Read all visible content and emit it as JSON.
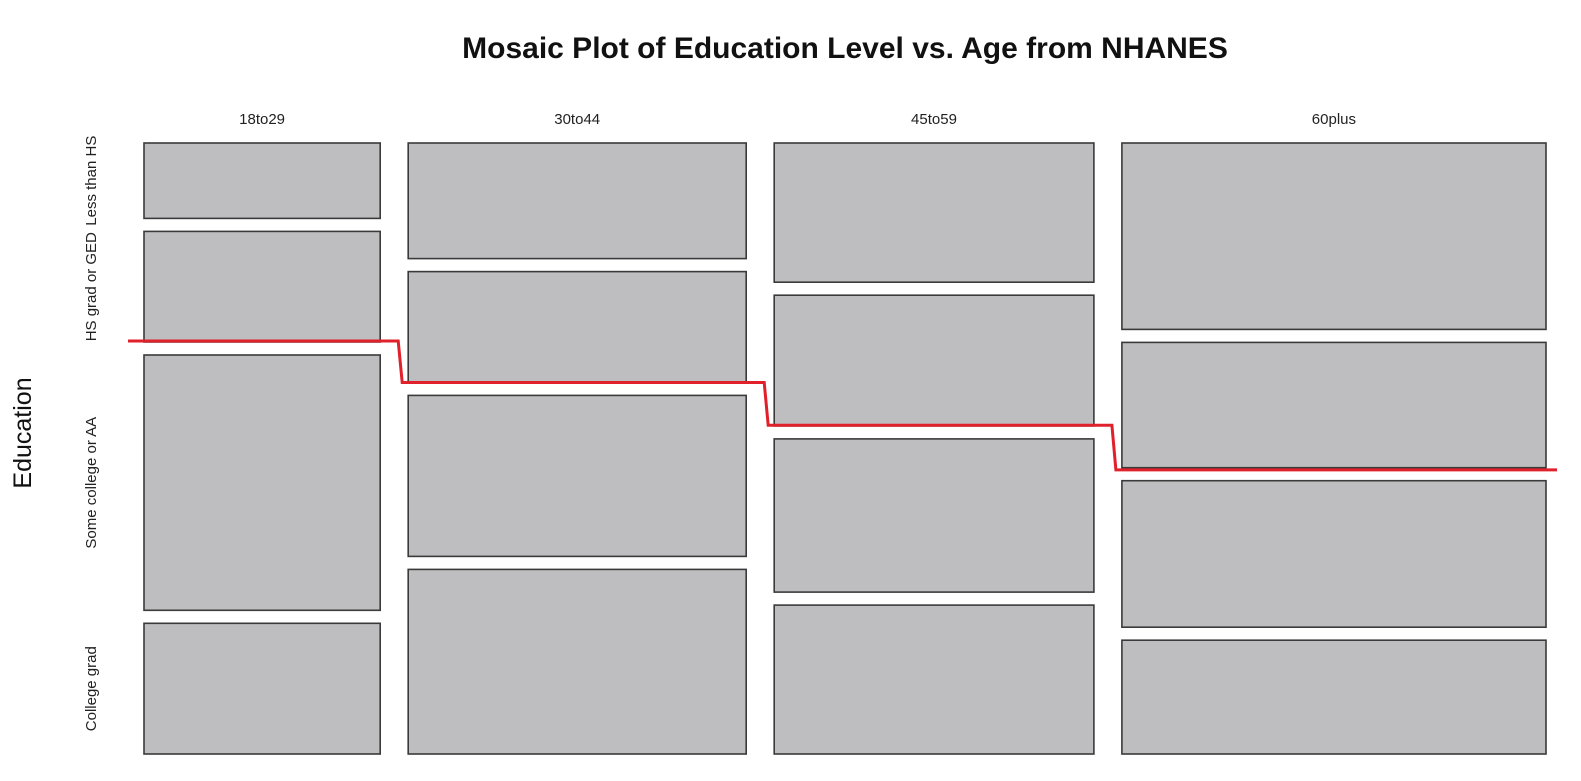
{
  "chart_data": {
    "type": "mosaic",
    "title": "Mosaic Plot of Education Level vs. Age from NHANES",
    "xlabel": "",
    "ylabel": "Education",
    "columns": [
      "18to29",
      "30to44",
      "45to59",
      "60plus"
    ],
    "column_proportions": [
      0.181,
      0.259,
      0.245,
      0.325
    ],
    "rows": [
      "Less than HS",
      "HS grad or GED",
      "Some college or AA",
      "College grad"
    ],
    "row_proportions": [
      [
        0.124,
        0.182,
        0.42,
        0.215
      ],
      [
        0.191,
        0.183,
        0.266,
        0.305
      ],
      [
        0.229,
        0.215,
        0.252,
        0.245
      ],
      [
        0.308,
        0.207,
        0.242,
        0.188
      ]
    ],
    "tile_color": "#bebdbf",
    "annotation_line_color": "#e0202a",
    "annotation_line": [
      0.324,
      0.392,
      0.462,
      0.535
    ],
    "grid": false,
    "legend": "none"
  }
}
